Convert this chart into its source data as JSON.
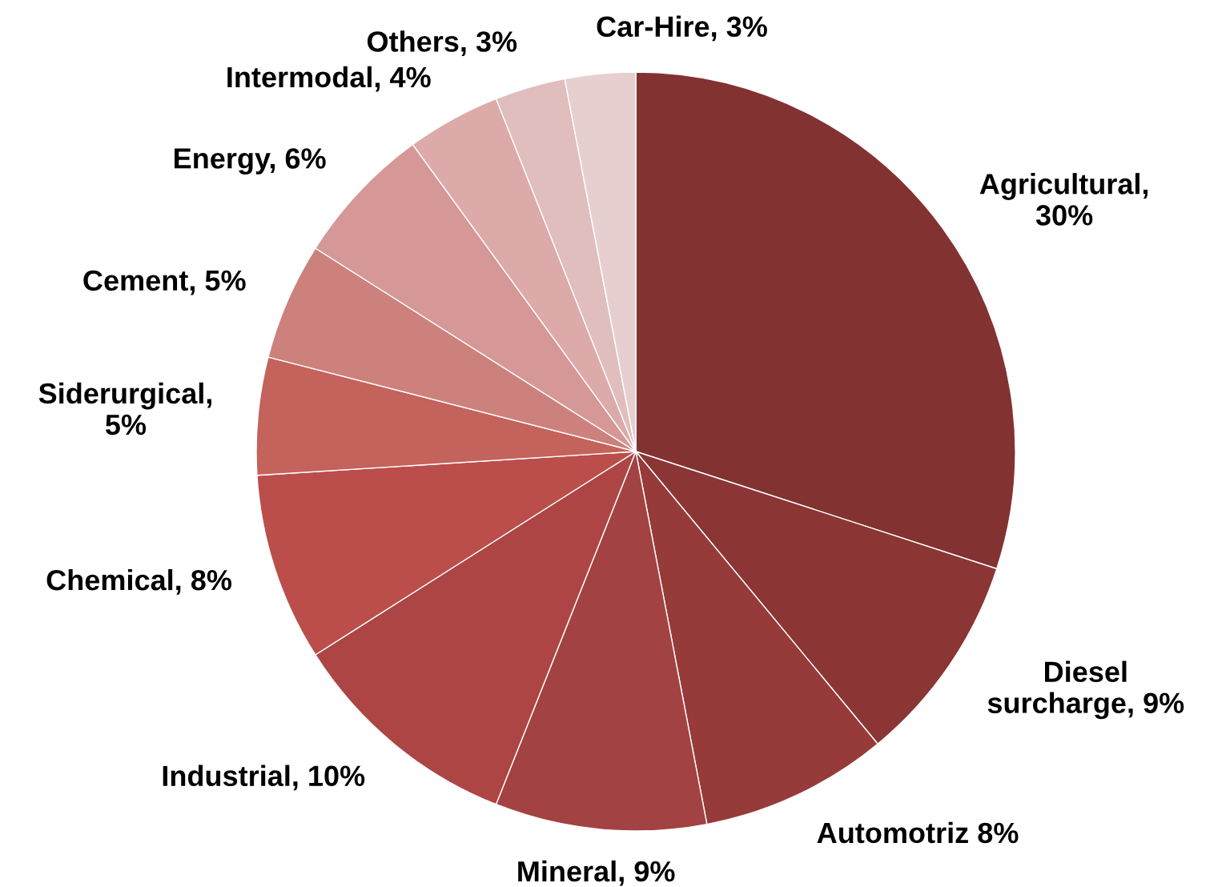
{
  "chart_data": {
    "type": "pie",
    "categories": [
      "Agricultural,\n30%",
      "Diesel\nsurcharge, 9%",
      "Automotriz 8%",
      "Mineral, 9%",
      "Industrial, 10%",
      "Chemical, 8%",
      "Siderurgical,\n5%",
      "Cement, 5%",
      "Energy, 6%",
      "Intermodal, 4%",
      "Others, 3%",
      "Car-Hire, 3%"
    ],
    "values": [
      30,
      9,
      8,
      9,
      10,
      8,
      5,
      5,
      6,
      4,
      3,
      3
    ],
    "colors": [
      "#833232",
      "#8b3535",
      "#973a3a",
      "#a34242",
      "#ad4545",
      "#bb4e4a",
      "#c4625c",
      "#cc817d",
      "#d59896",
      "#dcaaa9",
      "#e0bebe",
      "#e8cfcf"
    ]
  }
}
